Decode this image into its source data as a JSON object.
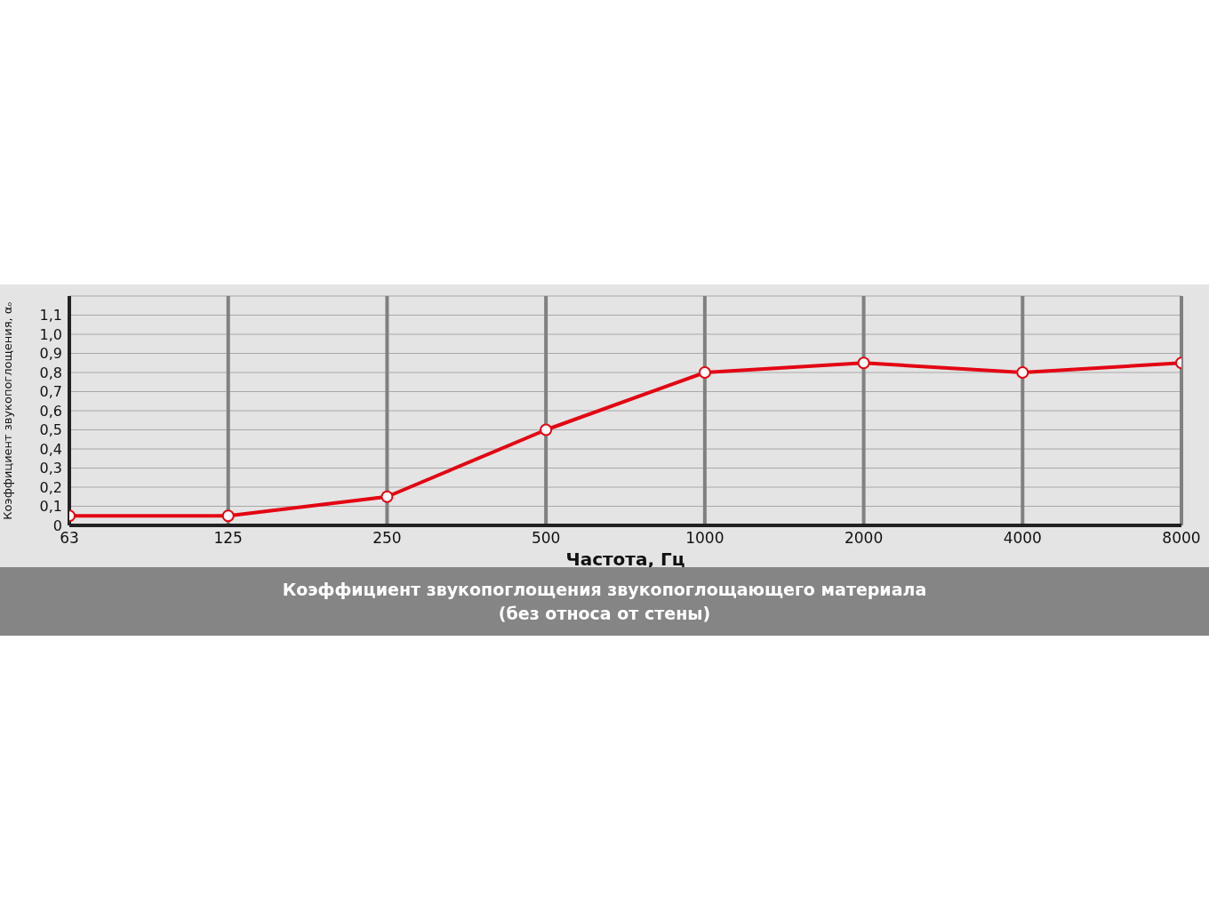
{
  "chart_data": {
    "type": "line",
    "title": "Коэффициент звукопоглощения звукопоглощающего материала\n(без относа от стены)",
    "xlabel": "Частота, Гц",
    "ylabel": "Коэффициент звукопоглощения, αₒ",
    "categories": [
      "63",
      "125",
      "250",
      "500",
      "1000",
      "2000",
      "4000",
      "8000"
    ],
    "series": [
      {
        "color": "#e30613",
        "values": [
          0.05,
          0.05,
          0.15,
          0.5,
          0.8,
          0.85,
          0.8,
          0.85
        ]
      }
    ],
    "ylim": [
      0,
      1.2
    ],
    "yticks": [
      0,
      {
        "value": 0.1,
        "label": "0,1"
      },
      {
        "value": 0.2,
        "label": "0,2"
      },
      {
        "value": 0.3,
        "label": "0,3"
      },
      {
        "value": 0.4,
        "label": "0,4"
      },
      {
        "value": 0.5,
        "label": "0,5"
      },
      {
        "value": 0.6,
        "label": "0,6"
      },
      {
        "value": 0.7,
        "label": "0,7"
      },
      {
        "value": 0.8,
        "label": "0,8"
      },
      {
        "value": 0.9,
        "label": "0,9"
      },
      {
        "value": 1.0,
        "label": "1,0"
      },
      {
        "value": 1.1,
        "label": "1,1"
      }
    ],
    "grid": true,
    "marker": "circle",
    "line_style": "solid"
  }
}
